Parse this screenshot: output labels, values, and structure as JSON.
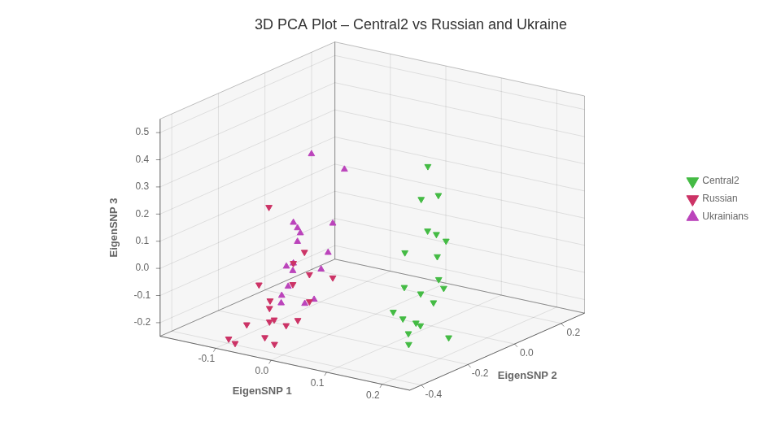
{
  "chart_data": {
    "type": "scatter3d",
    "title": "3D PCA Plot – Central2 vs Russian and Ukraine",
    "xlabel": "EigenSNP 1",
    "ylabel": "EigenSNP 2",
    "zlabel": "EigenSNP 3",
    "xlim": [
      -0.2,
      0.25
    ],
    "ylim": [
      -0.45,
      0.3
    ],
    "zlim": [
      -0.25,
      0.55
    ],
    "xticks": [
      -0.1,
      {
        "value": 0.0,
        "label": "0.0"
      },
      0.1,
      0.2
    ],
    "yticks": [
      -0.4,
      -0.2,
      {
        "value": 0.0,
        "label": "0.0"
      },
      0.2
    ],
    "zticks": [
      -0.2,
      -0.1,
      {
        "value": 0.0,
        "label": "0.0"
      },
      0.1,
      0.2,
      0.3,
      0.4,
      0.5
    ],
    "grid": true,
    "legend": "right",
    "series": [
      {
        "name": "Central2",
        "color": "#44bb44",
        "marker": "triangle-down",
        "values": [
          [
            0.06,
            0.08,
            0.29
          ],
          [
            0.1,
            0.03,
            0.22
          ],
          [
            0.09,
            -0.02,
            0.22
          ],
          [
            0.13,
            -0.05,
            0.12
          ],
          [
            0.16,
            -0.08,
            0.12
          ],
          [
            0.11,
            -0.04,
            0.12
          ],
          [
            0.09,
            -0.09,
            0.05
          ],
          [
            0.14,
            -0.07,
            0.05
          ],
          [
            0.11,
            -0.14,
            -0.05
          ],
          [
            0.16,
            -0.09,
            -0.05
          ],
          [
            0.13,
            -0.04,
            -0.05
          ],
          [
            0.11,
            -0.07,
            -0.1
          ],
          [
            0.15,
            -0.11,
            -0.1
          ],
          [
            0.12,
            -0.17,
            -0.15
          ],
          [
            0.09,
            -0.14,
            -0.15
          ],
          [
            0.16,
            -0.19,
            -0.15
          ],
          [
            0.19,
            -0.14,
            -0.2
          ],
          [
            0.16,
            -0.24,
            -0.2
          ],
          [
            0.11,
            -0.09,
            -0.2
          ],
          [
            0.13,
            -0.17,
            -0.2
          ]
        ]
      },
      {
        "name": "Russian",
        "color": "#cc3366",
        "marker": "triangle-down",
        "values": [
          [
            -0.09,
            -0.14,
            -0.05
          ],
          [
            -0.07,
            -0.19,
            -0.1
          ],
          [
            -0.04,
            -0.09,
            -0.1
          ],
          [
            -0.11,
            -0.24,
            -0.1
          ],
          [
            -0.07,
            -0.29,
            -0.15
          ],
          [
            -0.04,
            -0.19,
            -0.15
          ],
          [
            -0.09,
            -0.24,
            -0.15
          ],
          [
            -0.07,
            -0.29,
            -0.2
          ],
          [
            -0.04,
            -0.24,
            -0.2
          ],
          [
            -0.09,
            -0.34,
            -0.2
          ],
          [
            -0.07,
            -0.27,
            -0.2
          ],
          [
            -0.04,
            -0.29,
            -0.2
          ],
          [
            -0.11,
            -0.37,
            -0.25
          ],
          [
            -0.07,
            -0.31,
            -0.25
          ],
          [
            -0.04,
            -0.34,
            -0.25
          ],
          [
            -0.09,
            -0.39,
            -0.25
          ],
          [
            -0.05,
            -0.34,
            0.25
          ],
          [
            -0.07,
            -0.14,
            0.0
          ],
          [
            -0.04,
            -0.19,
            -0.05
          ]
        ]
      },
      {
        "name": "Ukrainians",
        "color": "#bb44bb",
        "marker": "triangle-up",
        "values": [
          [
            -0.07,
            -0.11,
            0.35
          ],
          [
            -0.04,
            -0.04,
            0.28
          ],
          [
            -0.09,
            -0.14,
            0.1
          ],
          [
            -0.07,
            -0.17,
            0.1
          ],
          [
            -0.04,
            -0.09,
            0.1
          ],
          [
            -0.09,
            -0.11,
            0.05
          ],
          [
            -0.07,
            -0.17,
            0.05
          ],
          [
            -0.04,
            -0.11,
            0.0
          ],
          [
            -0.09,
            -0.14,
            -0.05
          ],
          [
            -0.07,
            -0.19,
            -0.05
          ],
          [
            -0.04,
            -0.14,
            -0.05
          ],
          [
            -0.09,
            -0.17,
            -0.05
          ],
          [
            -0.07,
            -0.21,
            -0.1
          ],
          [
            -0.04,
            -0.17,
            -0.15
          ],
          [
            -0.09,
            -0.19,
            -0.15
          ],
          [
            -0.07,
            -0.24,
            -0.15
          ],
          [
            -0.04,
            -0.21,
            -0.15
          ]
        ]
      }
    ]
  }
}
